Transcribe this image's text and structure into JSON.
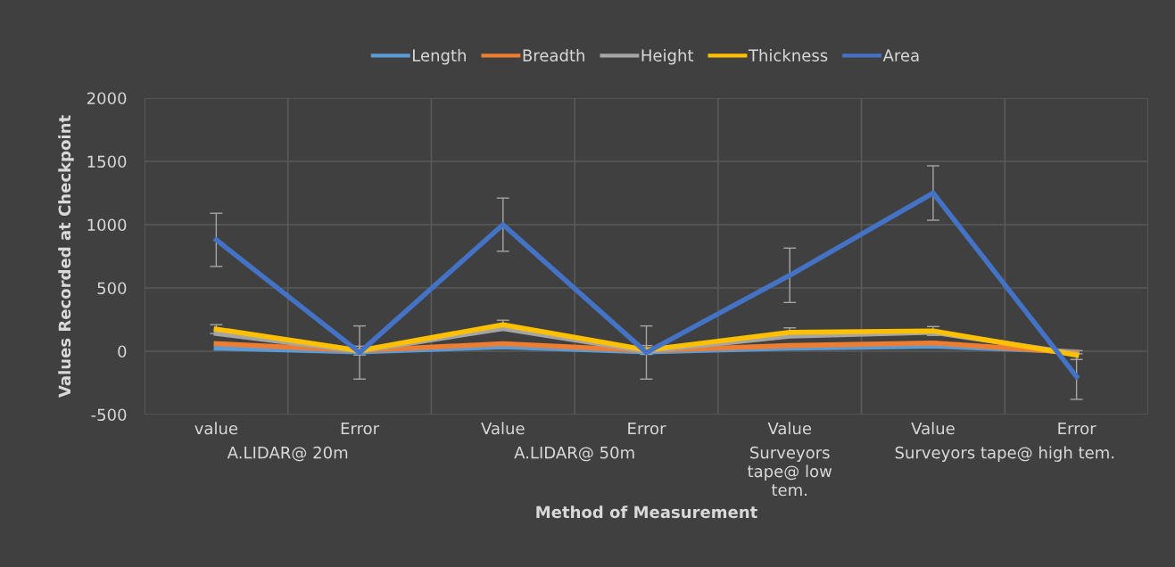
{
  "chart_data": {
    "type": "line",
    "xlabel": "Method of Measurement",
    "ylabel": "Values Recorded at Checkpoint",
    "categories": [
      "value",
      "Error",
      "Value",
      "Error",
      "Value",
      "Value",
      "Error"
    ],
    "series": [
      {
        "name": "Length",
        "color": "#5b9bd5",
        "values": [
          25,
          -5,
          35,
          -5,
          25,
          40,
          -5
        ]
      },
      {
        "name": "Breadth",
        "color": "#ed7d31",
        "values": [
          60,
          5,
          60,
          5,
          45,
          65,
          -10
        ]
      },
      {
        "name": "Height",
        "color": "#a5a5a5",
        "values": [
          140,
          0,
          180,
          0,
          120,
          150,
          -20
        ]
      },
      {
        "name": "Thickness",
        "color": "#ffc000",
        "values": [
          175,
          5,
          210,
          10,
          150,
          160,
          -30
        ],
        "errors": [
          35,
          35,
          35,
          35,
          35,
          35,
          35
        ]
      },
      {
        "name": "Area",
        "color": "#4472c4",
        "values": [
          880,
          -10,
          1000,
          -10,
          600,
          1250,
          -200
        ],
        "errors": [
          210,
          210,
          210,
          210,
          215,
          215,
          180
        ]
      }
    ],
    "ylim": [
      -500,
      2000
    ],
    "yticks": [
      -500,
      0,
      500,
      1000,
      1500,
      2000
    ],
    "grid": true,
    "legend": "top",
    "marker": "none",
    "line_style": "solid",
    "annotations": [
      "A.LIDAR@ 20m",
      "A.LIDAR@ 50m",
      "Surveyors\ntape@ low\ntem.",
      "Surveyors tape@ high tem."
    ]
  }
}
